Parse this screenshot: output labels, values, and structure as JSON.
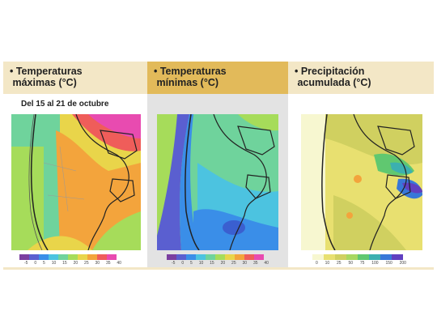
{
  "panels": [
    {
      "title": "• Temperaturas\n máximas (°C)",
      "subtitle": "Del 15 al 21 de octubre",
      "scale": [
        "-5",
        "0",
        "5",
        "10",
        "15",
        "20",
        "25",
        "30",
        "35",
        "40"
      ],
      "colors": [
        "#7b3fa0",
        "#5a5fd0",
        "#3a8ee8",
        "#4cc3e0",
        "#6fd39c",
        "#a6dc5a",
        "#e9d54a",
        "#f3a43c",
        "#ef5d5a",
        "#e84bb0"
      ]
    },
    {
      "title": "• Temperaturas\n mínimas (°C)",
      "subtitle": "",
      "scale": [
        "-5",
        "0",
        "5",
        "10",
        "15",
        "20",
        "25",
        "30",
        "35",
        "40"
      ],
      "colors": [
        "#7b3fa0",
        "#5a5fd0",
        "#3a8ee8",
        "#4cc3e0",
        "#6fd39c",
        "#a6dc5a",
        "#e9d54a",
        "#f3a43c",
        "#ef5d5a",
        "#e84bb0"
      ]
    },
    {
      "title": "• Precipitación\n acumulada (°C)",
      "subtitle": "",
      "scale": [
        "0",
        "10",
        "25",
        "50",
        "75",
        "100",
        "150",
        "200"
      ],
      "colors": [
        "#f7f7d0",
        "#e8e070",
        "#d0d060",
        "#a8d860",
        "#60c870",
        "#3cb0b0",
        "#3878d8",
        "#6040c0"
      ]
    }
  ]
}
